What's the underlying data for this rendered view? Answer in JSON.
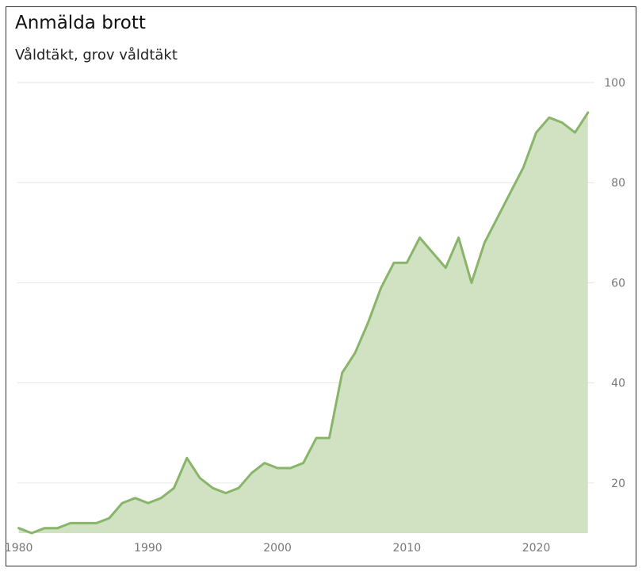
{
  "chart_data": {
    "type": "area",
    "title": "Anmälda brott",
    "subtitle": "Våldtäkt, grov våldtäkt",
    "xlabel": "",
    "ylabel": "",
    "x": [
      1980,
      1981,
      1982,
      1983,
      1984,
      1985,
      1986,
      1987,
      1988,
      1989,
      1990,
      1991,
      1992,
      1993,
      1994,
      1995,
      1996,
      1997,
      1998,
      1999,
      2000,
      2001,
      2002,
      2003,
      2004,
      2005,
      2006,
      2007,
      2008,
      2009,
      2010,
      2011,
      2012,
      2013,
      2014,
      2015,
      2016,
      2017,
      2018,
      2019,
      2020,
      2021,
      2022,
      2023,
      2024
    ],
    "series": [
      {
        "values": [
          11,
          10,
          11,
          11,
          12,
          12,
          12,
          13,
          16,
          17,
          16,
          17,
          19,
          25,
          21,
          19,
          18,
          19,
          22,
          24,
          23,
          23,
          24,
          29,
          29,
          42,
          46,
          52,
          59,
          64,
          64,
          69,
          66,
          63,
          69,
          60,
          68,
          73,
          78,
          83,
          90,
          93,
          92,
          90,
          94
        ]
      }
    ],
    "xlim": [
      1979.9,
      2024.5
    ],
    "ylim": [
      10,
      100
    ],
    "x_ticks": [
      1980,
      1990,
      2000,
      2010,
      2020
    ],
    "y_ticks": [
      20,
      40,
      60,
      80,
      100
    ],
    "grid": "horizontal",
    "y_axis_side": "right",
    "colors": {
      "line": "#88b56a",
      "fill": "#d0e2c1",
      "grid": "#e6e6e6"
    }
  }
}
